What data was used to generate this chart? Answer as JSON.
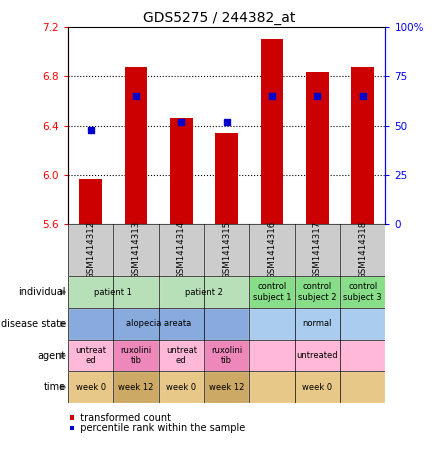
{
  "title": "GDS5275 / 244382_at",
  "samples": [
    "GSM1414312",
    "GSM1414313",
    "GSM1414314",
    "GSM1414315",
    "GSM1414316",
    "GSM1414317",
    "GSM1414318"
  ],
  "transformed_count": [
    5.97,
    6.88,
    6.46,
    6.34,
    7.1,
    6.84,
    6.88
  ],
  "percentile_rank": [
    48,
    65,
    52,
    52,
    65,
    65,
    65
  ],
  "ylim_left": [
    5.6,
    7.2
  ],
  "ylim_right": [
    0,
    100
  ],
  "yticks_left": [
    5.6,
    6.0,
    6.4,
    6.8,
    7.2
  ],
  "yticks_right": [
    0,
    25,
    50,
    75,
    100
  ],
  "ytick_labels_right": [
    "0",
    "25",
    "50",
    "75",
    "100%"
  ],
  "bar_color": "#cc0000",
  "dot_color": "#0000cc",
  "bar_bottom": 5.6,
  "annotation_rows": [
    {
      "label": "individual",
      "cells": [
        {
          "text": "patient 1",
          "span": [
            0,
            1
          ],
          "color": "#b8e0b8"
        },
        {
          "text": "patient 2",
          "span": [
            2,
            3
          ],
          "color": "#b8e0b8"
        },
        {
          "text": "control\nsubject 1",
          "span": [
            4,
            4
          ],
          "color": "#88dd88"
        },
        {
          "text": "control\nsubject 2",
          "span": [
            5,
            5
          ],
          "color": "#88dd88"
        },
        {
          "text": "control\nsubject 3",
          "span": [
            6,
            6
          ],
          "color": "#88dd88"
        }
      ]
    },
    {
      "label": "disease state",
      "cells": [
        {
          "text": "alopecia areata",
          "span": [
            0,
            3
          ],
          "color": "#88aadd"
        },
        {
          "text": "normal",
          "span": [
            4,
            6
          ],
          "color": "#aaccee"
        }
      ]
    },
    {
      "label": "agent",
      "cells": [
        {
          "text": "untreat\ned",
          "span": [
            0,
            0
          ],
          "color": "#ffb8d8"
        },
        {
          "text": "ruxolini\ntib",
          "span": [
            1,
            1
          ],
          "color": "#ee88bb"
        },
        {
          "text": "untreat\ned",
          "span": [
            2,
            2
          ],
          "color": "#ffb8d8"
        },
        {
          "text": "ruxolini\ntib",
          "span": [
            3,
            3
          ],
          "color": "#ee88bb"
        },
        {
          "text": "untreated",
          "span": [
            4,
            6
          ],
          "color": "#ffb8d8"
        }
      ]
    },
    {
      "label": "time",
      "cells": [
        {
          "text": "week 0",
          "span": [
            0,
            0
          ],
          "color": "#e8c888"
        },
        {
          "text": "week 12",
          "span": [
            1,
            1
          ],
          "color": "#ccaa66"
        },
        {
          "text": "week 0",
          "span": [
            2,
            2
          ],
          "color": "#e8c888"
        },
        {
          "text": "week 12",
          "span": [
            3,
            3
          ],
          "color": "#ccaa66"
        },
        {
          "text": "week 0",
          "span": [
            4,
            6
          ],
          "color": "#e8c888"
        }
      ]
    }
  ],
  "sample_row_color": "#cccccc",
  "grid_yticks": [
    6.0,
    6.4,
    6.8
  ]
}
